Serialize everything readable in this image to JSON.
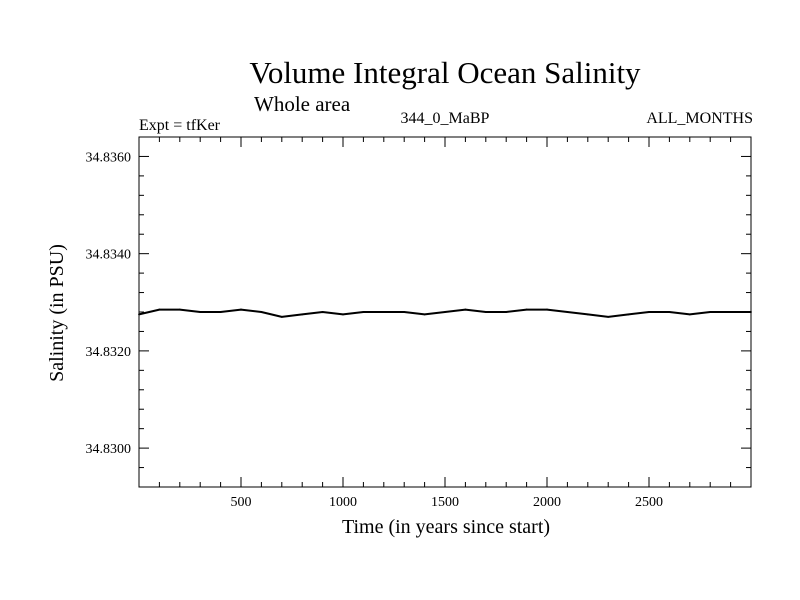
{
  "title": "Volume Integral Ocean Salinity",
  "subtitle": "Whole area",
  "experiment_label": "Expt = tfKer",
  "run_label": "344_0_MaBP",
  "period_label": "ALL_MONTHS",
  "colors": {
    "line": "#000000",
    "axes": "#000000",
    "background": "#ffffff"
  },
  "chart_data": {
    "type": "line",
    "title": "Volume Integral Ocean Salinity",
    "subtitle": "Whole area",
    "xlabel": "Time (in years since start)",
    "ylabel": "Salinity (in PSU)",
    "xlim": [
      0,
      3000
    ],
    "ylim": [
      34.8292,
      34.8364
    ],
    "xticks": [
      500,
      1000,
      1500,
      2000,
      2500
    ],
    "xtick_labels": [
      "500",
      "1000",
      "1500",
      "2000",
      "2500"
    ],
    "yticks": [
      34.83,
      34.832,
      34.834,
      34.836
    ],
    "ytick_labels": [
      "34.8300",
      "34.8320",
      "34.8340",
      "34.8360"
    ],
    "grid": false,
    "series": [
      {
        "x": [
          0,
          100,
          200,
          300,
          400,
          500,
          600,
          700,
          800,
          900,
          1000,
          1100,
          1200,
          1300,
          1400,
          1500,
          1600,
          1700,
          1800,
          1900,
          2000,
          2100,
          2200,
          2300,
          2400,
          2500,
          2600,
          2700,
          2800,
          2900,
          3000
        ],
        "values": [
          34.83275,
          34.83285,
          34.83285,
          34.8328,
          34.8328,
          34.83285,
          34.8328,
          34.8327,
          34.83275,
          34.8328,
          34.83275,
          34.8328,
          34.8328,
          34.8328,
          34.83275,
          34.8328,
          34.83285,
          34.8328,
          34.8328,
          34.83285,
          34.83285,
          34.8328,
          34.83275,
          34.8327,
          34.83275,
          34.8328,
          34.8328,
          34.83275,
          34.8328,
          34.8328,
          34.8328
        ]
      }
    ]
  }
}
